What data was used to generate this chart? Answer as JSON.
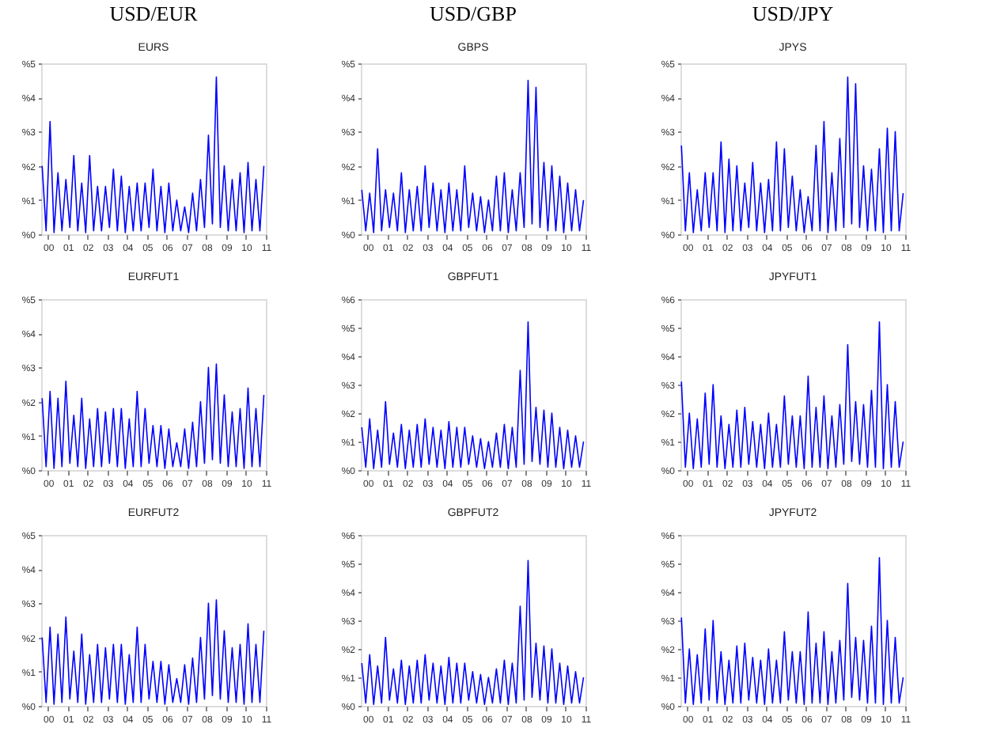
{
  "chart_data": [
    {
      "type": "line",
      "title": "EURS",
      "annotations": [
        "USD/EUR"
      ],
      "xlim": [
        1999.65,
        2011.0
      ],
      "ylim": [
        0,
        5
      ],
      "grid": false,
      "legend": false,
      "marker": "none",
      "line_style": "solid",
      "xticks": [
        {
          "value": 2000,
          "label": "00"
        },
        {
          "value": 2001,
          "label": "01"
        },
        {
          "value": 2002,
          "label": "02"
        },
        {
          "value": 2003,
          "label": "03"
        },
        {
          "value": 2004,
          "label": "04"
        },
        {
          "value": 2005,
          "label": "05"
        },
        {
          "value": 2006,
          "label": "06"
        },
        {
          "value": 2007,
          "label": "07"
        },
        {
          "value": 2008,
          "label": "08"
        },
        {
          "value": 2009,
          "label": "09"
        },
        {
          "value": 2010,
          "label": "10"
        },
        {
          "value": 2011,
          "label": "11"
        }
      ],
      "yticks": [
        {
          "value": 0,
          "label": "%0"
        },
        {
          "value": 1,
          "label": "%1"
        },
        {
          "value": 2,
          "label": "%2"
        },
        {
          "value": 3,
          "label": "%3"
        },
        {
          "value": 4,
          "label": "%4"
        },
        {
          "value": 5,
          "label": "%5"
        }
      ],
      "series": [
        {
          "color": "#0000ff",
          "x": [
            1999.7,
            1999.9,
            2000.1,
            2000.3,
            2000.5,
            2000.7,
            2000.9,
            2001.1,
            2001.3,
            2001.5,
            2001.7,
            2001.9,
            2002.1,
            2002.3,
            2002.5,
            2002.7,
            2002.9,
            2003.1,
            2003.3,
            2003.5,
            2003.7,
            2003.9,
            2004.1,
            2004.3,
            2004.5,
            2004.7,
            2004.9,
            2005.1,
            2005.3,
            2005.5,
            2005.7,
            2005.9,
            2006.1,
            2006.3,
            2006.5,
            2006.7,
            2006.9,
            2007.1,
            2007.3,
            2007.5,
            2007.7,
            2007.9,
            2008.1,
            2008.3,
            2008.5,
            2008.7,
            2008.9,
            2009.1,
            2009.3,
            2009.5,
            2009.7,
            2009.9,
            2010.1,
            2010.3,
            2010.5,
            2010.7,
            2010.9
          ],
          "values": [
            2.0,
            0.1,
            3.3,
            0.05,
            1.8,
            0.1,
            1.6,
            0.2,
            2.3,
            0.1,
            1.5,
            0.05,
            2.3,
            0.1,
            1.4,
            0.1,
            1.4,
            0.2,
            1.9,
            0.1,
            1.7,
            0.05,
            1.4,
            0.1,
            1.5,
            0.1,
            1.5,
            0.2,
            1.9,
            0.1,
            1.4,
            0.05,
            1.5,
            0.1,
            1.0,
            0.1,
            0.8,
            0.05,
            1.2,
            0.1,
            1.6,
            0.2,
            2.9,
            0.3,
            4.6,
            0.2,
            2.0,
            0.1,
            1.6,
            0.1,
            1.8,
            0.05,
            2.1,
            0.1,
            1.6,
            0.1,
            2.0
          ]
        }
      ]
    },
    {
      "type": "line",
      "title": "GBPS",
      "annotations": [
        "USD/GBP"
      ],
      "xlim": [
        1999.65,
        2011.0
      ],
      "ylim": [
        0,
        5
      ],
      "grid": false,
      "legend": false,
      "marker": "none",
      "line_style": "solid",
      "xticks": [
        {
          "value": 2000,
          "label": "00"
        },
        {
          "value": 2001,
          "label": "01"
        },
        {
          "value": 2002,
          "label": "02"
        },
        {
          "value": 2003,
          "label": "03"
        },
        {
          "value": 2004,
          "label": "04"
        },
        {
          "value": 2005,
          "label": "05"
        },
        {
          "value": 2006,
          "label": "06"
        },
        {
          "value": 2007,
          "label": "07"
        },
        {
          "value": 2008,
          "label": "08"
        },
        {
          "value": 2009,
          "label": "09"
        },
        {
          "value": 2010,
          "label": "10"
        },
        {
          "value": 2011,
          "label": "11"
        }
      ],
      "yticks": [
        {
          "value": 0,
          "label": "%0"
        },
        {
          "value": 1,
          "label": "%1"
        },
        {
          "value": 2,
          "label": "%2"
        },
        {
          "value": 3,
          "label": "%3"
        },
        {
          "value": 4,
          "label": "%4"
        },
        {
          "value": 5,
          "label": "%5"
        }
      ],
      "series": [
        {
          "color": "#0000ff",
          "x": [
            1999.7,
            1999.9,
            2000.1,
            2000.3,
            2000.5,
            2000.7,
            2000.9,
            2001.1,
            2001.3,
            2001.5,
            2001.7,
            2001.9,
            2002.1,
            2002.3,
            2002.5,
            2002.7,
            2002.9,
            2003.1,
            2003.3,
            2003.5,
            2003.7,
            2003.9,
            2004.1,
            2004.3,
            2004.5,
            2004.7,
            2004.9,
            2005.1,
            2005.3,
            2005.5,
            2005.7,
            2005.9,
            2006.1,
            2006.3,
            2006.5,
            2006.7,
            2006.9,
            2007.1,
            2007.3,
            2007.5,
            2007.7,
            2007.9,
            2008.1,
            2008.3,
            2008.5,
            2008.7,
            2008.9,
            2009.1,
            2009.3,
            2009.5,
            2009.7,
            2009.9,
            2010.1,
            2010.3,
            2010.5,
            2010.7,
            2010.9
          ],
          "values": [
            1.3,
            0.1,
            1.2,
            0.05,
            2.5,
            0.1,
            1.3,
            0.2,
            1.2,
            0.1,
            1.8,
            0.05,
            1.3,
            0.1,
            1.4,
            0.1,
            2.0,
            0.2,
            1.5,
            0.1,
            1.3,
            0.05,
            1.5,
            0.1,
            1.3,
            0.1,
            2.0,
            0.2,
            1.2,
            0.1,
            1.1,
            0.05,
            1.0,
            0.1,
            1.7,
            0.1,
            1.8,
            0.05,
            1.3,
            0.1,
            1.8,
            0.2,
            4.5,
            0.3,
            4.3,
            0.2,
            2.1,
            0.1,
            2.0,
            0.1,
            1.7,
            0.05,
            1.5,
            0.1,
            1.3,
            0.1,
            1.0
          ]
        }
      ]
    },
    {
      "type": "line",
      "title": "JPYS",
      "annotations": [
        "USD/JPY"
      ],
      "xlim": [
        1999.65,
        2011.0
      ],
      "ylim": [
        0,
        5
      ],
      "grid": false,
      "legend": false,
      "marker": "none",
      "line_style": "solid",
      "xticks": [
        {
          "value": 2000,
          "label": "00"
        },
        {
          "value": 2001,
          "label": "01"
        },
        {
          "value": 2002,
          "label": "02"
        },
        {
          "value": 2003,
          "label": "03"
        },
        {
          "value": 2004,
          "label": "04"
        },
        {
          "value": 2005,
          "label": "05"
        },
        {
          "value": 2006,
          "label": "06"
        },
        {
          "value": 2007,
          "label": "07"
        },
        {
          "value": 2008,
          "label": "08"
        },
        {
          "value": 2009,
          "label": "09"
        },
        {
          "value": 2010,
          "label": "10"
        },
        {
          "value": 2011,
          "label": "11"
        }
      ],
      "yticks": [
        {
          "value": 0,
          "label": "%0"
        },
        {
          "value": 1,
          "label": "%1"
        },
        {
          "value": 2,
          "label": "%2"
        },
        {
          "value": 3,
          "label": "%3"
        },
        {
          "value": 4,
          "label": "%4"
        },
        {
          "value": 5,
          "label": "%5"
        }
      ],
      "series": [
        {
          "color": "#0000ff",
          "x": [
            1999.7,
            1999.9,
            2000.1,
            2000.3,
            2000.5,
            2000.7,
            2000.9,
            2001.1,
            2001.3,
            2001.5,
            2001.7,
            2001.9,
            2002.1,
            2002.3,
            2002.5,
            2002.7,
            2002.9,
            2003.1,
            2003.3,
            2003.5,
            2003.7,
            2003.9,
            2004.1,
            2004.3,
            2004.5,
            2004.7,
            2004.9,
            2005.1,
            2005.3,
            2005.5,
            2005.7,
            2005.9,
            2006.1,
            2006.3,
            2006.5,
            2006.7,
            2006.9,
            2007.1,
            2007.3,
            2007.5,
            2007.7,
            2007.9,
            2008.1,
            2008.3,
            2008.5,
            2008.7,
            2008.9,
            2009.1,
            2009.3,
            2009.5,
            2009.7,
            2009.9,
            2010.1,
            2010.3,
            2010.5,
            2010.7,
            2010.9
          ],
          "values": [
            2.6,
            0.1,
            1.8,
            0.05,
            1.3,
            0.1,
            1.8,
            0.2,
            1.8,
            0.1,
            2.7,
            0.05,
            2.2,
            0.1,
            2.0,
            0.1,
            1.5,
            0.2,
            2.1,
            0.1,
            1.5,
            0.05,
            1.6,
            0.1,
            2.7,
            0.1,
            2.5,
            0.2,
            1.7,
            0.1,
            1.3,
            0.05,
            1.1,
            0.1,
            2.6,
            0.1,
            3.3,
            0.05,
            1.8,
            0.1,
            2.8,
            0.2,
            4.6,
            0.3,
            4.4,
            0.2,
            2.0,
            0.1,
            1.9,
            0.1,
            2.5,
            0.05,
            3.1,
            0.1,
            3.0,
            0.1,
            1.2
          ]
        }
      ]
    },
    {
      "type": "line",
      "title": "EURFUT1",
      "xlim": [
        1999.65,
        2011.0
      ],
      "ylim": [
        0,
        5
      ],
      "grid": false,
      "legend": false,
      "marker": "none",
      "line_style": "solid",
      "xticks": [
        {
          "value": 2000,
          "label": "00"
        },
        {
          "value": 2001,
          "label": "01"
        },
        {
          "value": 2002,
          "label": "02"
        },
        {
          "value": 2003,
          "label": "03"
        },
        {
          "value": 2004,
          "label": "04"
        },
        {
          "value": 2005,
          "label": "05"
        },
        {
          "value": 2006,
          "label": "06"
        },
        {
          "value": 2007,
          "label": "07"
        },
        {
          "value": 2008,
          "label": "08"
        },
        {
          "value": 2009,
          "label": "09"
        },
        {
          "value": 2010,
          "label": "10"
        },
        {
          "value": 2011,
          "label": "11"
        }
      ],
      "yticks": [
        {
          "value": 0,
          "label": "%0"
        },
        {
          "value": 1,
          "label": "%1"
        },
        {
          "value": 2,
          "label": "%2"
        },
        {
          "value": 3,
          "label": "%3"
        },
        {
          "value": 4,
          "label": "%4"
        },
        {
          "value": 5,
          "label": "%5"
        }
      ],
      "series": [
        {
          "color": "#0000ff",
          "x": [
            1999.7,
            1999.9,
            2000.1,
            2000.3,
            2000.5,
            2000.7,
            2000.9,
            2001.1,
            2001.3,
            2001.5,
            2001.7,
            2001.9,
            2002.1,
            2002.3,
            2002.5,
            2002.7,
            2002.9,
            2003.1,
            2003.3,
            2003.5,
            2003.7,
            2003.9,
            2004.1,
            2004.3,
            2004.5,
            2004.7,
            2004.9,
            2005.1,
            2005.3,
            2005.5,
            2005.7,
            2005.9,
            2006.1,
            2006.3,
            2006.5,
            2006.7,
            2006.9,
            2007.1,
            2007.3,
            2007.5,
            2007.7,
            2007.9,
            2008.1,
            2008.3,
            2008.5,
            2008.7,
            2008.9,
            2009.1,
            2009.3,
            2009.5,
            2009.7,
            2009.9,
            2010.1,
            2010.3,
            2010.5,
            2010.7,
            2010.9
          ],
          "values": [
            2.1,
            0.1,
            2.3,
            0.05,
            2.1,
            0.1,
            2.6,
            0.2,
            1.6,
            0.1,
            2.1,
            0.05,
            1.5,
            0.1,
            1.8,
            0.1,
            1.7,
            0.2,
            1.8,
            0.1,
            1.8,
            0.05,
            1.5,
            0.1,
            2.3,
            0.1,
            1.8,
            0.2,
            1.3,
            0.1,
            1.3,
            0.05,
            1.2,
            0.1,
            0.8,
            0.1,
            1.2,
            0.05,
            1.4,
            0.1,
            2.0,
            0.2,
            3.0,
            0.3,
            3.1,
            0.2,
            2.2,
            0.1,
            1.7,
            0.1,
            1.8,
            0.05,
            2.4,
            0.1,
            1.8,
            0.1,
            2.2
          ]
        }
      ]
    },
    {
      "type": "line",
      "title": "GBPFUT1",
      "xlim": [
        1999.65,
        2011.0
      ],
      "ylim": [
        0,
        6
      ],
      "grid": false,
      "legend": false,
      "marker": "none",
      "line_style": "solid",
      "xticks": [
        {
          "value": 2000,
          "label": "00"
        },
        {
          "value": 2001,
          "label": "01"
        },
        {
          "value": 2002,
          "label": "02"
        },
        {
          "value": 2003,
          "label": "03"
        },
        {
          "value": 2004,
          "label": "04"
        },
        {
          "value": 2005,
          "label": "05"
        },
        {
          "value": 2006,
          "label": "06"
        },
        {
          "value": 2007,
          "label": "07"
        },
        {
          "value": 2008,
          "label": "08"
        },
        {
          "value": 2009,
          "label": "09"
        },
        {
          "value": 2010,
          "label": "10"
        },
        {
          "value": 2011,
          "label": "11"
        }
      ],
      "yticks": [
        {
          "value": 0,
          "label": "%0"
        },
        {
          "value": 1,
          "label": "%1"
        },
        {
          "value": 2,
          "label": "%2"
        },
        {
          "value": 3,
          "label": "%3"
        },
        {
          "value": 4,
          "label": "%4"
        },
        {
          "value": 5,
          "label": "%5"
        },
        {
          "value": 6,
          "label": "%6"
        }
      ],
      "series": [
        {
          "color": "#0000ff",
          "x": [
            1999.7,
            1999.9,
            2000.1,
            2000.3,
            2000.5,
            2000.7,
            2000.9,
            2001.1,
            2001.3,
            2001.5,
            2001.7,
            2001.9,
            2002.1,
            2002.3,
            2002.5,
            2002.7,
            2002.9,
            2003.1,
            2003.3,
            2003.5,
            2003.7,
            2003.9,
            2004.1,
            2004.3,
            2004.5,
            2004.7,
            2004.9,
            2005.1,
            2005.3,
            2005.5,
            2005.7,
            2005.9,
            2006.1,
            2006.3,
            2006.5,
            2006.7,
            2006.9,
            2007.1,
            2007.3,
            2007.5,
            2007.7,
            2007.9,
            2008.1,
            2008.3,
            2008.5,
            2008.7,
            2008.9,
            2009.1,
            2009.3,
            2009.5,
            2009.7,
            2009.9,
            2010.1,
            2010.3,
            2010.5,
            2010.7,
            2010.9
          ],
          "values": [
            1.5,
            0.1,
            1.8,
            0.05,
            1.4,
            0.1,
            2.4,
            0.2,
            1.3,
            0.1,
            1.6,
            0.05,
            1.4,
            0.1,
            1.6,
            0.1,
            1.8,
            0.2,
            1.5,
            0.1,
            1.4,
            0.05,
            1.7,
            0.1,
            1.5,
            0.1,
            1.5,
            0.2,
            1.2,
            0.1,
            1.1,
            0.05,
            1.0,
            0.1,
            1.3,
            0.1,
            1.6,
            0.05,
            1.5,
            0.1,
            3.5,
            0.2,
            5.2,
            0.3,
            2.2,
            0.2,
            2.1,
            0.1,
            2.0,
            0.1,
            1.5,
            0.05,
            1.4,
            0.1,
            1.2,
            0.1,
            1.0
          ]
        }
      ]
    },
    {
      "type": "line",
      "title": "JPYFUT1",
      "xlim": [
        1999.65,
        2011.0
      ],
      "ylim": [
        0,
        6
      ],
      "grid": false,
      "legend": false,
      "marker": "none",
      "line_style": "solid",
      "xticks": [
        {
          "value": 2000,
          "label": "00"
        },
        {
          "value": 2001,
          "label": "01"
        },
        {
          "value": 2002,
          "label": "02"
        },
        {
          "value": 2003,
          "label": "03"
        },
        {
          "value": 2004,
          "label": "04"
        },
        {
          "value": 2005,
          "label": "05"
        },
        {
          "value": 2006,
          "label": "06"
        },
        {
          "value": 2007,
          "label": "07"
        },
        {
          "value": 2008,
          "label": "08"
        },
        {
          "value": 2009,
          "label": "09"
        },
        {
          "value": 2010,
          "label": "10"
        },
        {
          "value": 2011,
          "label": "11"
        }
      ],
      "yticks": [
        {
          "value": 0,
          "label": "%0"
        },
        {
          "value": 1,
          "label": "%1"
        },
        {
          "value": 2,
          "label": "%2"
        },
        {
          "value": 3,
          "label": "%3"
        },
        {
          "value": 4,
          "label": "%4"
        },
        {
          "value": 5,
          "label": "%5"
        },
        {
          "value": 6,
          "label": "%6"
        }
      ],
      "series": [
        {
          "color": "#0000ff",
          "x": [
            1999.7,
            1999.9,
            2000.1,
            2000.3,
            2000.5,
            2000.7,
            2000.9,
            2001.1,
            2001.3,
            2001.5,
            2001.7,
            2001.9,
            2002.1,
            2002.3,
            2002.5,
            2002.7,
            2002.9,
            2003.1,
            2003.3,
            2003.5,
            2003.7,
            2003.9,
            2004.1,
            2004.3,
            2004.5,
            2004.7,
            2004.9,
            2005.1,
            2005.3,
            2005.5,
            2005.7,
            2005.9,
            2006.1,
            2006.3,
            2006.5,
            2006.7,
            2006.9,
            2007.1,
            2007.3,
            2007.5,
            2007.7,
            2007.9,
            2008.1,
            2008.3,
            2008.5,
            2008.7,
            2008.9,
            2009.1,
            2009.3,
            2009.5,
            2009.7,
            2009.9,
            2010.1,
            2010.3,
            2010.5,
            2010.7,
            2010.9
          ],
          "values": [
            3.1,
            0.1,
            2.0,
            0.05,
            1.8,
            0.1,
            2.7,
            0.2,
            3.0,
            0.1,
            1.9,
            0.05,
            1.6,
            0.1,
            2.1,
            0.1,
            2.2,
            0.2,
            1.7,
            0.1,
            1.6,
            0.05,
            2.0,
            0.1,
            1.6,
            0.1,
            2.6,
            0.2,
            1.9,
            0.1,
            1.9,
            0.05,
            3.3,
            0.1,
            2.2,
            0.1,
            2.6,
            0.05,
            1.9,
            0.1,
            2.3,
            0.2,
            4.4,
            0.3,
            2.4,
            0.2,
            2.3,
            0.1,
            2.8,
            0.1,
            5.2,
            0.05,
            3.0,
            0.1,
            2.4,
            0.1,
            1.0
          ]
        }
      ]
    },
    {
      "type": "line",
      "title": "EURFUT2",
      "xlim": [
        1999.65,
        2011.0
      ],
      "ylim": [
        0,
        5
      ],
      "grid": false,
      "legend": false,
      "marker": "none",
      "line_style": "solid",
      "xticks": [
        {
          "value": 2000,
          "label": "00"
        },
        {
          "value": 2001,
          "label": "01"
        },
        {
          "value": 2002,
          "label": "02"
        },
        {
          "value": 2003,
          "label": "03"
        },
        {
          "value": 2004,
          "label": "04"
        },
        {
          "value": 2005,
          "label": "05"
        },
        {
          "value": 2006,
          "label": "06"
        },
        {
          "value": 2007,
          "label": "07"
        },
        {
          "value": 2008,
          "label": "08"
        },
        {
          "value": 2009,
          "label": "09"
        },
        {
          "value": 2010,
          "label": "10"
        },
        {
          "value": 2011,
          "label": "11"
        }
      ],
      "yticks": [
        {
          "value": 0,
          "label": "%0"
        },
        {
          "value": 1,
          "label": "%1"
        },
        {
          "value": 2,
          "label": "%2"
        },
        {
          "value": 3,
          "label": "%3"
        },
        {
          "value": 4,
          "label": "%4"
        },
        {
          "value": 5,
          "label": "%5"
        }
      ],
      "series": [
        {
          "color": "#0000ff",
          "x": [
            1999.7,
            1999.9,
            2000.1,
            2000.3,
            2000.5,
            2000.7,
            2000.9,
            2001.1,
            2001.3,
            2001.5,
            2001.7,
            2001.9,
            2002.1,
            2002.3,
            2002.5,
            2002.7,
            2002.9,
            2003.1,
            2003.3,
            2003.5,
            2003.7,
            2003.9,
            2004.1,
            2004.3,
            2004.5,
            2004.7,
            2004.9,
            2005.1,
            2005.3,
            2005.5,
            2005.7,
            2005.9,
            2006.1,
            2006.3,
            2006.5,
            2006.7,
            2006.9,
            2007.1,
            2007.3,
            2007.5,
            2007.7,
            2007.9,
            2008.1,
            2008.3,
            2008.5,
            2008.7,
            2008.9,
            2009.1,
            2009.3,
            2009.5,
            2009.7,
            2009.9,
            2010.1,
            2010.3,
            2010.5,
            2010.7,
            2010.9
          ],
          "values": [
            2.0,
            0.1,
            2.3,
            0.05,
            2.1,
            0.1,
            2.6,
            0.2,
            1.6,
            0.1,
            2.1,
            0.05,
            1.5,
            0.1,
            1.8,
            0.1,
            1.7,
            0.2,
            1.8,
            0.1,
            1.8,
            0.05,
            1.5,
            0.1,
            2.3,
            0.1,
            1.8,
            0.2,
            1.3,
            0.1,
            1.3,
            0.05,
            1.2,
            0.1,
            0.8,
            0.1,
            1.2,
            0.05,
            1.4,
            0.1,
            2.0,
            0.2,
            3.0,
            0.3,
            3.1,
            0.2,
            2.2,
            0.1,
            1.7,
            0.1,
            1.8,
            0.05,
            2.4,
            0.1,
            1.8,
            0.1,
            2.2
          ]
        }
      ]
    },
    {
      "type": "line",
      "title": "GBPFUT2",
      "xlim": [
        1999.65,
        2011.0
      ],
      "ylim": [
        0,
        6
      ],
      "grid": false,
      "legend": false,
      "marker": "none",
      "line_style": "solid",
      "xticks": [
        {
          "value": 2000,
          "label": "00"
        },
        {
          "value": 2001,
          "label": "01"
        },
        {
          "value": 2002,
          "label": "02"
        },
        {
          "value": 2003,
          "label": "03"
        },
        {
          "value": 2004,
          "label": "04"
        },
        {
          "value": 2005,
          "label": "05"
        },
        {
          "value": 2006,
          "label": "06"
        },
        {
          "value": 2007,
          "label": "07"
        },
        {
          "value": 2008,
          "label": "08"
        },
        {
          "value": 2009,
          "label": "09"
        },
        {
          "value": 2010,
          "label": "10"
        },
        {
          "value": 2011,
          "label": "11"
        }
      ],
      "yticks": [
        {
          "value": 0,
          "label": "%0"
        },
        {
          "value": 1,
          "label": "%1"
        },
        {
          "value": 2,
          "label": "%2"
        },
        {
          "value": 3,
          "label": "%3"
        },
        {
          "value": 4,
          "label": "%4"
        },
        {
          "value": 5,
          "label": "%5"
        },
        {
          "value": 6,
          "label": "%6"
        }
      ],
      "series": [
        {
          "color": "#0000ff",
          "x": [
            1999.7,
            1999.9,
            2000.1,
            2000.3,
            2000.5,
            2000.7,
            2000.9,
            2001.1,
            2001.3,
            2001.5,
            2001.7,
            2001.9,
            2002.1,
            2002.3,
            2002.5,
            2002.7,
            2002.9,
            2003.1,
            2003.3,
            2003.5,
            2003.7,
            2003.9,
            2004.1,
            2004.3,
            2004.5,
            2004.7,
            2004.9,
            2005.1,
            2005.3,
            2005.5,
            2005.7,
            2005.9,
            2006.1,
            2006.3,
            2006.5,
            2006.7,
            2006.9,
            2007.1,
            2007.3,
            2007.5,
            2007.7,
            2007.9,
            2008.1,
            2008.3,
            2008.5,
            2008.7,
            2008.9,
            2009.1,
            2009.3,
            2009.5,
            2009.7,
            2009.9,
            2010.1,
            2010.3,
            2010.5,
            2010.7,
            2010.9
          ],
          "values": [
            1.5,
            0.1,
            1.8,
            0.05,
            1.4,
            0.1,
            2.4,
            0.2,
            1.3,
            0.1,
            1.6,
            0.05,
            1.4,
            0.1,
            1.6,
            0.1,
            1.8,
            0.2,
            1.5,
            0.1,
            1.4,
            0.05,
            1.7,
            0.1,
            1.5,
            0.1,
            1.5,
            0.2,
            1.2,
            0.1,
            1.1,
            0.05,
            1.0,
            0.1,
            1.3,
            0.1,
            1.6,
            0.05,
            1.5,
            0.1,
            3.5,
            0.2,
            5.1,
            0.3,
            2.2,
            0.2,
            2.1,
            0.1,
            2.0,
            0.1,
            1.5,
            0.05,
            1.4,
            0.1,
            1.2,
            0.1,
            1.0
          ]
        }
      ]
    },
    {
      "type": "line",
      "title": "JPYFUT2",
      "xlim": [
        1999.65,
        2011.0
      ],
      "ylim": [
        0,
        6
      ],
      "grid": false,
      "legend": false,
      "marker": "none",
      "line_style": "solid",
      "xticks": [
        {
          "value": 2000,
          "label": "00"
        },
        {
          "value": 2001,
          "label": "01"
        },
        {
          "value": 2002,
          "label": "02"
        },
        {
          "value": 2003,
          "label": "03"
        },
        {
          "value": 2004,
          "label": "04"
        },
        {
          "value": 2005,
          "label": "05"
        },
        {
          "value": 2006,
          "label": "06"
        },
        {
          "value": 2007,
          "label": "07"
        },
        {
          "value": 2008,
          "label": "08"
        },
        {
          "value": 2009,
          "label": "09"
        },
        {
          "value": 2010,
          "label": "10"
        },
        {
          "value": 2011,
          "label": "11"
        }
      ],
      "yticks": [
        {
          "value": 0,
          "label": "%0"
        },
        {
          "value": 1,
          "label": "%1"
        },
        {
          "value": 2,
          "label": "%2"
        },
        {
          "value": 3,
          "label": "%3"
        },
        {
          "value": 4,
          "label": "%4"
        },
        {
          "value": 5,
          "label": "%5"
        },
        {
          "value": 6,
          "label": "%6"
        }
      ],
      "series": [
        {
          "color": "#0000ff",
          "x": [
            1999.7,
            1999.9,
            2000.1,
            2000.3,
            2000.5,
            2000.7,
            2000.9,
            2001.1,
            2001.3,
            2001.5,
            2001.7,
            2001.9,
            2002.1,
            2002.3,
            2002.5,
            2002.7,
            2002.9,
            2003.1,
            2003.3,
            2003.5,
            2003.7,
            2003.9,
            2004.1,
            2004.3,
            2004.5,
            2004.7,
            2004.9,
            2005.1,
            2005.3,
            2005.5,
            2005.7,
            2005.9,
            2006.1,
            2006.3,
            2006.5,
            2006.7,
            2006.9,
            2007.1,
            2007.3,
            2007.5,
            2007.7,
            2007.9,
            2008.1,
            2008.3,
            2008.5,
            2008.7,
            2008.9,
            2009.1,
            2009.3,
            2009.5,
            2009.7,
            2009.9,
            2010.1,
            2010.3,
            2010.5,
            2010.7,
            2010.9
          ],
          "values": [
            3.1,
            0.1,
            2.0,
            0.05,
            1.8,
            0.1,
            2.7,
            0.2,
            3.0,
            0.1,
            1.9,
            0.05,
            1.6,
            0.1,
            2.1,
            0.1,
            2.2,
            0.2,
            1.7,
            0.1,
            1.6,
            0.05,
            2.0,
            0.1,
            1.6,
            0.1,
            2.6,
            0.2,
            1.9,
            0.1,
            1.9,
            0.05,
            3.3,
            0.1,
            2.2,
            0.1,
            2.6,
            0.05,
            1.9,
            0.1,
            2.3,
            0.2,
            4.3,
            0.3,
            2.4,
            0.2,
            2.3,
            0.1,
            2.8,
            0.1,
            5.2,
            0.05,
            3.0,
            0.1,
            2.4,
            0.1,
            1.0
          ]
        }
      ]
    }
  ]
}
